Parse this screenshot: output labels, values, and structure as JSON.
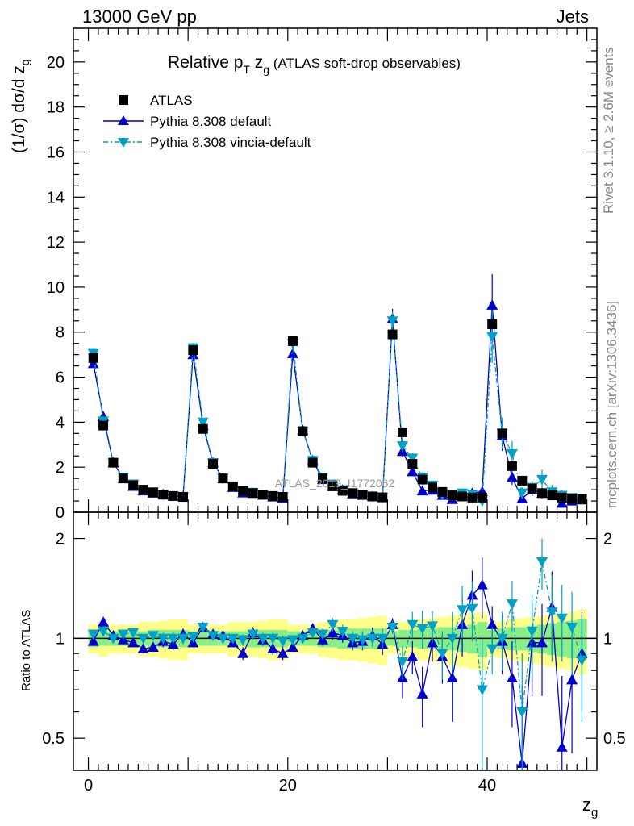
{
  "header": {
    "energy_label": "13000 GeV pp",
    "process_label": "Jets",
    "rivet_label": "Rivet 3.1.10, ≥ 2.6M events",
    "mcplots_label": "mcplots.cern.ch [arXiv:1306.3436]",
    "analysis_watermark": "ATLAS_2019_I1772062"
  },
  "chart_data": {
    "type": "scatter",
    "title_main": "Relative p",
    "title_sub1": "T",
    "title_mid": " z",
    "title_sub2": "g",
    "title_rest": " (ATLAS soft-drop observables)",
    "ylabel_main": "(1/σ) dσ/d z",
    "ylabel_sub": "g",
    "xlabel_main": "z",
    "xlabel_sub": "g",
    "ratio_ylabel": "Ratio to ATLAS",
    "xlim": [
      -1.5,
      51.0
    ],
    "ylim_main": [
      0,
      21.5
    ],
    "ylim_ratio": [
      0.4,
      2.4
    ],
    "main_yticks": [
      "0",
      "2",
      "4",
      "6",
      "8",
      "10",
      "12",
      "14",
      "16",
      "18",
      "20"
    ],
    "main_ytick_values": [
      0,
      2,
      4,
      6,
      8,
      10,
      12,
      14,
      16,
      18,
      20
    ],
    "xticks": [
      "0",
      "20",
      "40"
    ],
    "xtick_values": [
      0,
      20,
      40
    ],
    "ratio_yticks": [
      "0.5",
      "1",
      "2"
    ],
    "ratio_ytick_values": [
      0.5,
      1,
      2
    ],
    "legend": [
      "ATLAS",
      "Pythia 8.308 default",
      "Pythia 8.308 vincia-default"
    ],
    "x": [
      0.5,
      1.5,
      2.5,
      3.5,
      4.5,
      5.5,
      6.5,
      7.5,
      8.5,
      9.5,
      10.5,
      11.5,
      12.5,
      13.5,
      14.5,
      15.5,
      16.5,
      17.5,
      18.5,
      19.5,
      20.5,
      21.5,
      22.5,
      23.5,
      24.5,
      25.5,
      26.5,
      27.5,
      28.5,
      29.5,
      30.5,
      31.5,
      32.5,
      33.5,
      34.5,
      35.5,
      36.5,
      37.5,
      38.5,
      39.5,
      40.5,
      41.5,
      42.5,
      43.5,
      44.5,
      45.5,
      46.5,
      47.5,
      48.5,
      49.5
    ],
    "series": [
      {
        "name": "ATLAS",
        "color": "#000000",
        "values": [
          6.85,
          3.85,
          2.2,
          1.5,
          1.2,
          1.0,
          0.88,
          0.78,
          0.72,
          0.68,
          7.2,
          3.7,
          2.15,
          1.5,
          1.15,
          0.95,
          0.85,
          0.78,
          0.72,
          0.68,
          7.6,
          3.6,
          2.2,
          1.5,
          1.15,
          0.95,
          0.85,
          0.78,
          0.7,
          0.66,
          7.9,
          3.55,
          2.15,
          1.45,
          1.1,
          0.9,
          0.75,
          0.7,
          0.65,
          0.65,
          8.35,
          3.5,
          2.05,
          1.4,
          1.05,
          0.85,
          0.75,
          0.65,
          0.6,
          0.58
        ],
        "band_inner": [
          0.06,
          0.05,
          0.05,
          0.05,
          0.05,
          0.05,
          0.06,
          0.06,
          0.06,
          0.06,
          0.05,
          0.05,
          0.05,
          0.05,
          0.05,
          0.05,
          0.06,
          0.06,
          0.06,
          0.06,
          0.05,
          0.05,
          0.05,
          0.06,
          0.06,
          0.07,
          0.07,
          0.07,
          0.07,
          0.07,
          0.05,
          0.06,
          0.06,
          0.07,
          0.07,
          0.08,
          0.08,
          0.09,
          0.1,
          0.12,
          0.06,
          0.07,
          0.08,
          0.08,
          0.09,
          0.1,
          0.11,
          0.12,
          0.13,
          0.14
        ],
        "band_outer": [
          0.1,
          0.12,
          0.1,
          0.1,
          0.1,
          0.12,
          0.12,
          0.13,
          0.14,
          0.14,
          0.1,
          0.1,
          0.1,
          0.1,
          0.12,
          0.12,
          0.12,
          0.13,
          0.14,
          0.14,
          0.1,
          0.1,
          0.1,
          0.12,
          0.13,
          0.14,
          0.14,
          0.15,
          0.16,
          0.17,
          0.1,
          0.12,
          0.13,
          0.14,
          0.15,
          0.16,
          0.17,
          0.18,
          0.19,
          0.2,
          0.12,
          0.13,
          0.14,
          0.15,
          0.16,
          0.17,
          0.18,
          0.19,
          0.2,
          0.22
        ]
      },
      {
        "name": "Pythia 8.308 default",
        "color": "#0000cc",
        "values": [
          6.6,
          4.25,
          2.2,
          1.5,
          1.15,
          0.95,
          0.85,
          0.8,
          0.72,
          0.7,
          7.0,
          3.85,
          2.2,
          1.5,
          1.1,
          0.86,
          0.85,
          0.76,
          0.68,
          0.62,
          7.05,
          3.65,
          2.3,
          1.45,
          1.15,
          1.0,
          0.82,
          0.75,
          0.7,
          0.65,
          8.6,
          2.7,
          1.8,
          0.95,
          0.98,
          0.75,
          0.57,
          0.76,
          0.85,
          0.92,
          9.2,
          3.4,
          1.55,
          0.6,
          1.0,
          0.85,
          0.85,
          0.4,
          0.5,
          0.55
        ],
        "ratio": [
          0.98,
          1.12,
          1.02,
          0.99,
          0.97,
          0.93,
          0.94,
          0.98,
          0.96,
          1.03,
          0.97,
          1.08,
          1.03,
          1.02,
          0.97,
          0.9,
          1.04,
          0.99,
          0.93,
          0.9,
          0.94,
          1.02,
          1.07,
          0.99,
          1.04,
          1.02,
          0.97,
          0.98,
          1.02,
          0.96,
          1.1,
          0.76,
          0.88,
          0.68,
          0.97,
          0.88,
          0.76,
          1.1,
          1.35,
          1.45,
          1.1,
          0.98,
          0.76,
          0.42,
          0.97,
          0.97,
          1.24,
          0.47,
          0.75,
          0.9
        ],
        "ratio_err": [
          0.03,
          0.03,
          0.03,
          0.03,
          0.03,
          0.03,
          0.03,
          0.04,
          0.04,
          0.04,
          0.03,
          0.03,
          0.03,
          0.03,
          0.03,
          0.04,
          0.04,
          0.04,
          0.04,
          0.04,
          0.03,
          0.03,
          0.04,
          0.04,
          0.05,
          0.05,
          0.05,
          0.06,
          0.06,
          0.07,
          0.05,
          0.1,
          0.1,
          0.14,
          0.12,
          0.15,
          0.2,
          0.22,
          0.25,
          0.3,
          0.15,
          0.2,
          0.22,
          0.3,
          0.3,
          0.3,
          0.35,
          0.3,
          0.3,
          0.3
        ]
      },
      {
        "name": "Pythia 8.308 vincia-default",
        "color": "#00a0c8",
        "values": [
          7.05,
          4.05,
          2.2,
          1.55,
          1.25,
          1.0,
          0.9,
          0.78,
          0.72,
          0.68,
          7.3,
          4.0,
          2.2,
          1.5,
          1.15,
          0.95,
          0.88,
          0.78,
          0.72,
          0.68,
          7.5,
          3.6,
          2.3,
          1.55,
          1.25,
          1.0,
          0.85,
          0.77,
          0.7,
          0.66,
          8.5,
          2.95,
          2.4,
          1.55,
          1.2,
          0.8,
          0.75,
          0.85,
          0.8,
          0.5,
          7.8,
          3.5,
          2.6,
          0.85,
          1.1,
          1.45,
          0.9,
          0.75,
          0.65,
          0.55
        ],
        "ratio": [
          1.03,
          1.05,
          1.0,
          1.03,
          1.04,
          1.0,
          1.02,
          1.0,
          1.0,
          1.0,
          1.01,
          1.08,
          1.02,
          1.0,
          1.0,
          0.99,
          1.03,
          1.0,
          1.0,
          0.98,
          0.99,
          1.0,
          1.04,
          1.03,
          1.1,
          1.05,
          1.0,
          0.99,
          1.0,
          1.0,
          1.08,
          0.85,
          1.1,
          1.07,
          1.09,
          0.9,
          1.0,
          1.22,
          1.23,
          0.7,
          0.93,
          1.0,
          1.27,
          0.6,
          1.05,
          1.7,
          1.2,
          1.15,
          1.08,
          0.86
        ],
        "ratio_err": [
          0.03,
          0.03,
          0.03,
          0.03,
          0.03,
          0.03,
          0.03,
          0.04,
          0.04,
          0.04,
          0.03,
          0.03,
          0.03,
          0.03,
          0.03,
          0.04,
          0.04,
          0.04,
          0.04,
          0.04,
          0.03,
          0.03,
          0.04,
          0.04,
          0.05,
          0.05,
          0.05,
          0.06,
          0.06,
          0.07,
          0.05,
          0.1,
          0.1,
          0.14,
          0.12,
          0.15,
          0.2,
          0.22,
          0.25,
          0.3,
          0.15,
          0.2,
          0.22,
          0.3,
          0.3,
          0.3,
          0.35,
          0.3,
          0.3,
          0.3
        ]
      }
    ],
    "band_colors": [
      "#ffff88",
      "#88ee88"
    ],
    "grid": false,
    "legend_position": "top-left"
  }
}
